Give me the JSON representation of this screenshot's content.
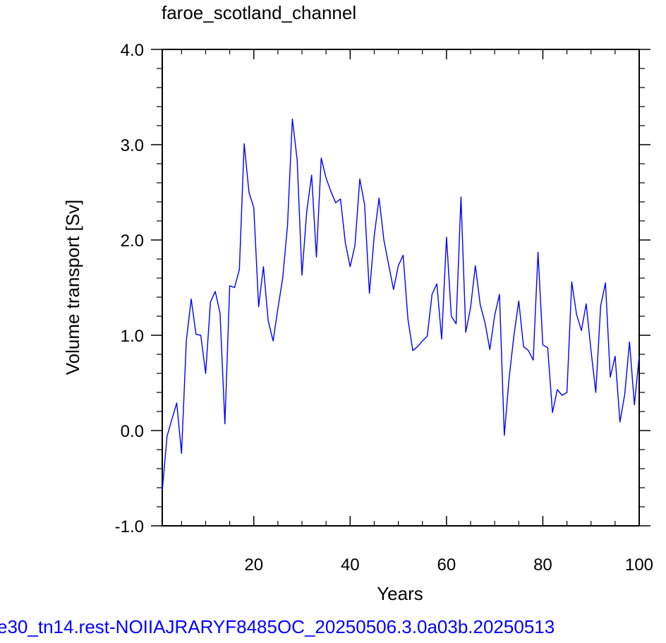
{
  "chart_data": {
    "type": "line",
    "title": "faroe_scotland_channel",
    "xlabel": "Years",
    "ylabel": "Volume transport [Sv]",
    "xlim": [
      1,
      100
    ],
    "ylim": [
      -1.0,
      4.0
    ],
    "x_ticks": [
      20,
      40,
      60,
      80,
      100
    ],
    "x_tick_labels": [
      "20",
      "40",
      "60",
      "80",
      "100"
    ],
    "y_ticks": [
      -1.0,
      0.0,
      1.0,
      2.0,
      3.0,
      4.0
    ],
    "y_tick_labels": [
      "-1.0",
      "0.0",
      "1.0",
      "2.0",
      "3.0",
      "4.0"
    ],
    "grid": false,
    "legend": "none",
    "line_color": "#0000ff",
    "series": [
      {
        "x": [
          1,
          2,
          3,
          4,
          5,
          6,
          7,
          8,
          9,
          10,
          11,
          12,
          13,
          14,
          15,
          16,
          17,
          18,
          19,
          20,
          21,
          22,
          23,
          24,
          25,
          26,
          27,
          28,
          29,
          30,
          31,
          32,
          33,
          34,
          35,
          36,
          37,
          38,
          39,
          40,
          41,
          42,
          43,
          44,
          45,
          46,
          47,
          48,
          49,
          50,
          51,
          52,
          53,
          54,
          55,
          56,
          57,
          58,
          59,
          60,
          61,
          62,
          63,
          64,
          65,
          66,
          67,
          68,
          69,
          70,
          71,
          72,
          73,
          74,
          75,
          76,
          77,
          78,
          79,
          80,
          81,
          82,
          83,
          84,
          85,
          86,
          87,
          88,
          89,
          90,
          91,
          92,
          93,
          94,
          95,
          96,
          97,
          98,
          99,
          100
        ],
        "values": [
          -0.63,
          -0.06,
          0.12,
          0.29,
          -0.24,
          0.94,
          1.38,
          1.01,
          1.0,
          0.6,
          1.35,
          1.46,
          1.23,
          0.07,
          1.52,
          1.5,
          1.69,
          3.01,
          2.5,
          2.34,
          1.3,
          1.72,
          1.15,
          0.94,
          1.28,
          1.6,
          2.15,
          3.27,
          2.84,
          1.63,
          2.3,
          2.68,
          1.82,
          2.86,
          2.65,
          2.51,
          2.39,
          2.43,
          1.97,
          1.72,
          1.94,
          2.64,
          2.37,
          1.44,
          2.04,
          2.44,
          2.0,
          1.74,
          1.48,
          1.73,
          1.84,
          1.17,
          0.84,
          0.88,
          0.94,
          0.99,
          1.43,
          1.54,
          0.96,
          2.03,
          1.2,
          1.12,
          2.45,
          1.03,
          1.29,
          1.73,
          1.32,
          1.13,
          0.85,
          1.21,
          1.43,
          -0.05,
          0.55,
          1.0,
          1.36,
          0.88,
          0.84,
          0.74,
          1.87,
          0.9,
          0.87,
          0.19,
          0.43,
          0.37,
          0.4,
          1.56,
          1.22,
          1.05,
          1.33,
          0.84,
          0.4,
          1.31,
          1.55,
          0.56,
          0.78,
          0.09,
          0.38,
          0.93,
          0.27,
          0.78
        ]
      }
    ]
  },
  "footer": {
    "text": "e30_tn14.rest-NOIIAJRARYF8485OC_20250506.3.0a03b.20250513",
    "color": "#0000ff"
  }
}
